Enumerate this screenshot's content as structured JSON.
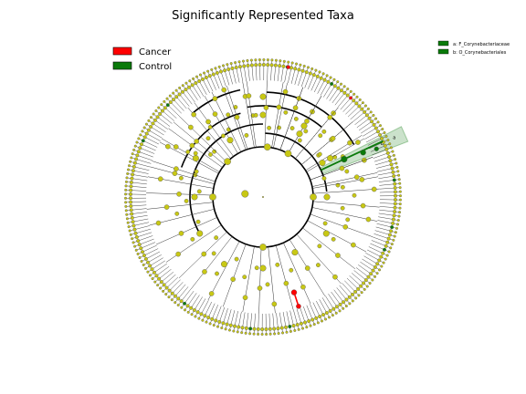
{
  "title": "Significantly Represented Taxa",
  "colors": {
    "cancer": "#ff0000",
    "control": "#0a7a0a",
    "node": "#c8c814",
    "node_stroke": "#555555",
    "highlight": "#2e8b2e"
  },
  "legend": {
    "items": [
      {
        "label": "Cancer",
        "color_key": "cancer"
      },
      {
        "label": "Control",
        "color_key": "control"
      }
    ]
  },
  "clade_legend": {
    "items": [
      {
        "label": "a: F_Corynebacteriaceae",
        "color_key": "control"
      },
      {
        "label": "b: O_Corynebacteriales",
        "color_key": "control"
      }
    ]
  },
  "clade_labels": [
    "a",
    "b"
  ]
}
